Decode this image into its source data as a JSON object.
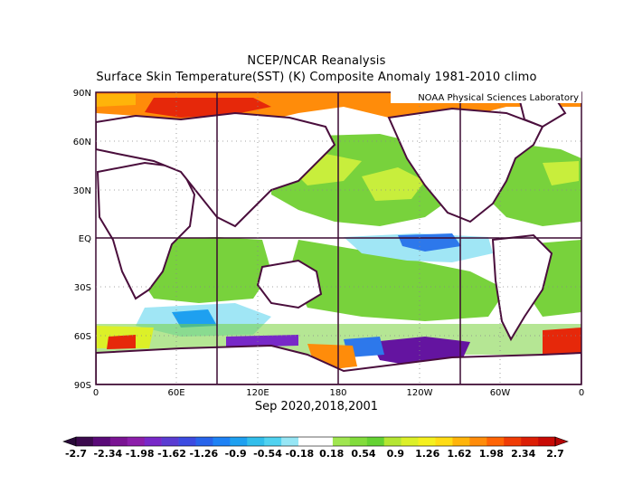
{
  "header": {
    "title_line1": "NCEP/NCAR Reanalysis",
    "title_line2": "Surface Skin Temperature(SST) (K) Composite Anomaly 1981-2010 climo"
  },
  "credit": "NOAA Physical Sciences Laboratory",
  "caption": "Sep 2020,2018,2001",
  "axes": {
    "lat_labels": [
      "90N",
      "60N",
      "30N",
      "EQ",
      "30S",
      "60S",
      "90S"
    ],
    "lon_labels": [
      "0",
      "60E",
      "120E",
      "180",
      "120W",
      "60W",
      "0"
    ]
  },
  "colorbar": {
    "labels": [
      "-2.7",
      "-2.34",
      "-1.98",
      "-1.62",
      "-1.26",
      "-0.9",
      "-0.54",
      "-0.18",
      "0.18",
      "0.54",
      "0.9",
      "1.26",
      "1.62",
      "1.98",
      "2.34",
      "2.7"
    ],
    "colors": [
      "#3c0a4e",
      "#5a0a78",
      "#7a1493",
      "#8c1eaa",
      "#7828c8",
      "#5a3cd2",
      "#3c4be1",
      "#2864eb",
      "#1e82f5",
      "#1ea0f0",
      "#32beeb",
      "#50d2f0",
      "#96e6f5",
      "#ffffff",
      "#ffffff",
      "#a0e650",
      "#82dc3c",
      "#64d232",
      "#b4e632",
      "#dcf028",
      "#f5f01e",
      "#ffdc14",
      "#ffb40a",
      "#ff8c0a",
      "#ff6405",
      "#f03c05",
      "#dc1e05",
      "#c80a05"
    ],
    "min_arrow_color": "#2a0a3a",
    "max_arrow_color": "#b40505"
  },
  "colors": {
    "land_outline": "#4a0e3c",
    "grid_line": "#3c0a32",
    "warm_green": "#78d23c",
    "warm_yellow": "#dcf028",
    "hot_red": "#e6280a",
    "cool_cyan": "#a0e6f5",
    "cool_blue": "#2d78eb",
    "cold_purple": "#6414a0"
  }
}
